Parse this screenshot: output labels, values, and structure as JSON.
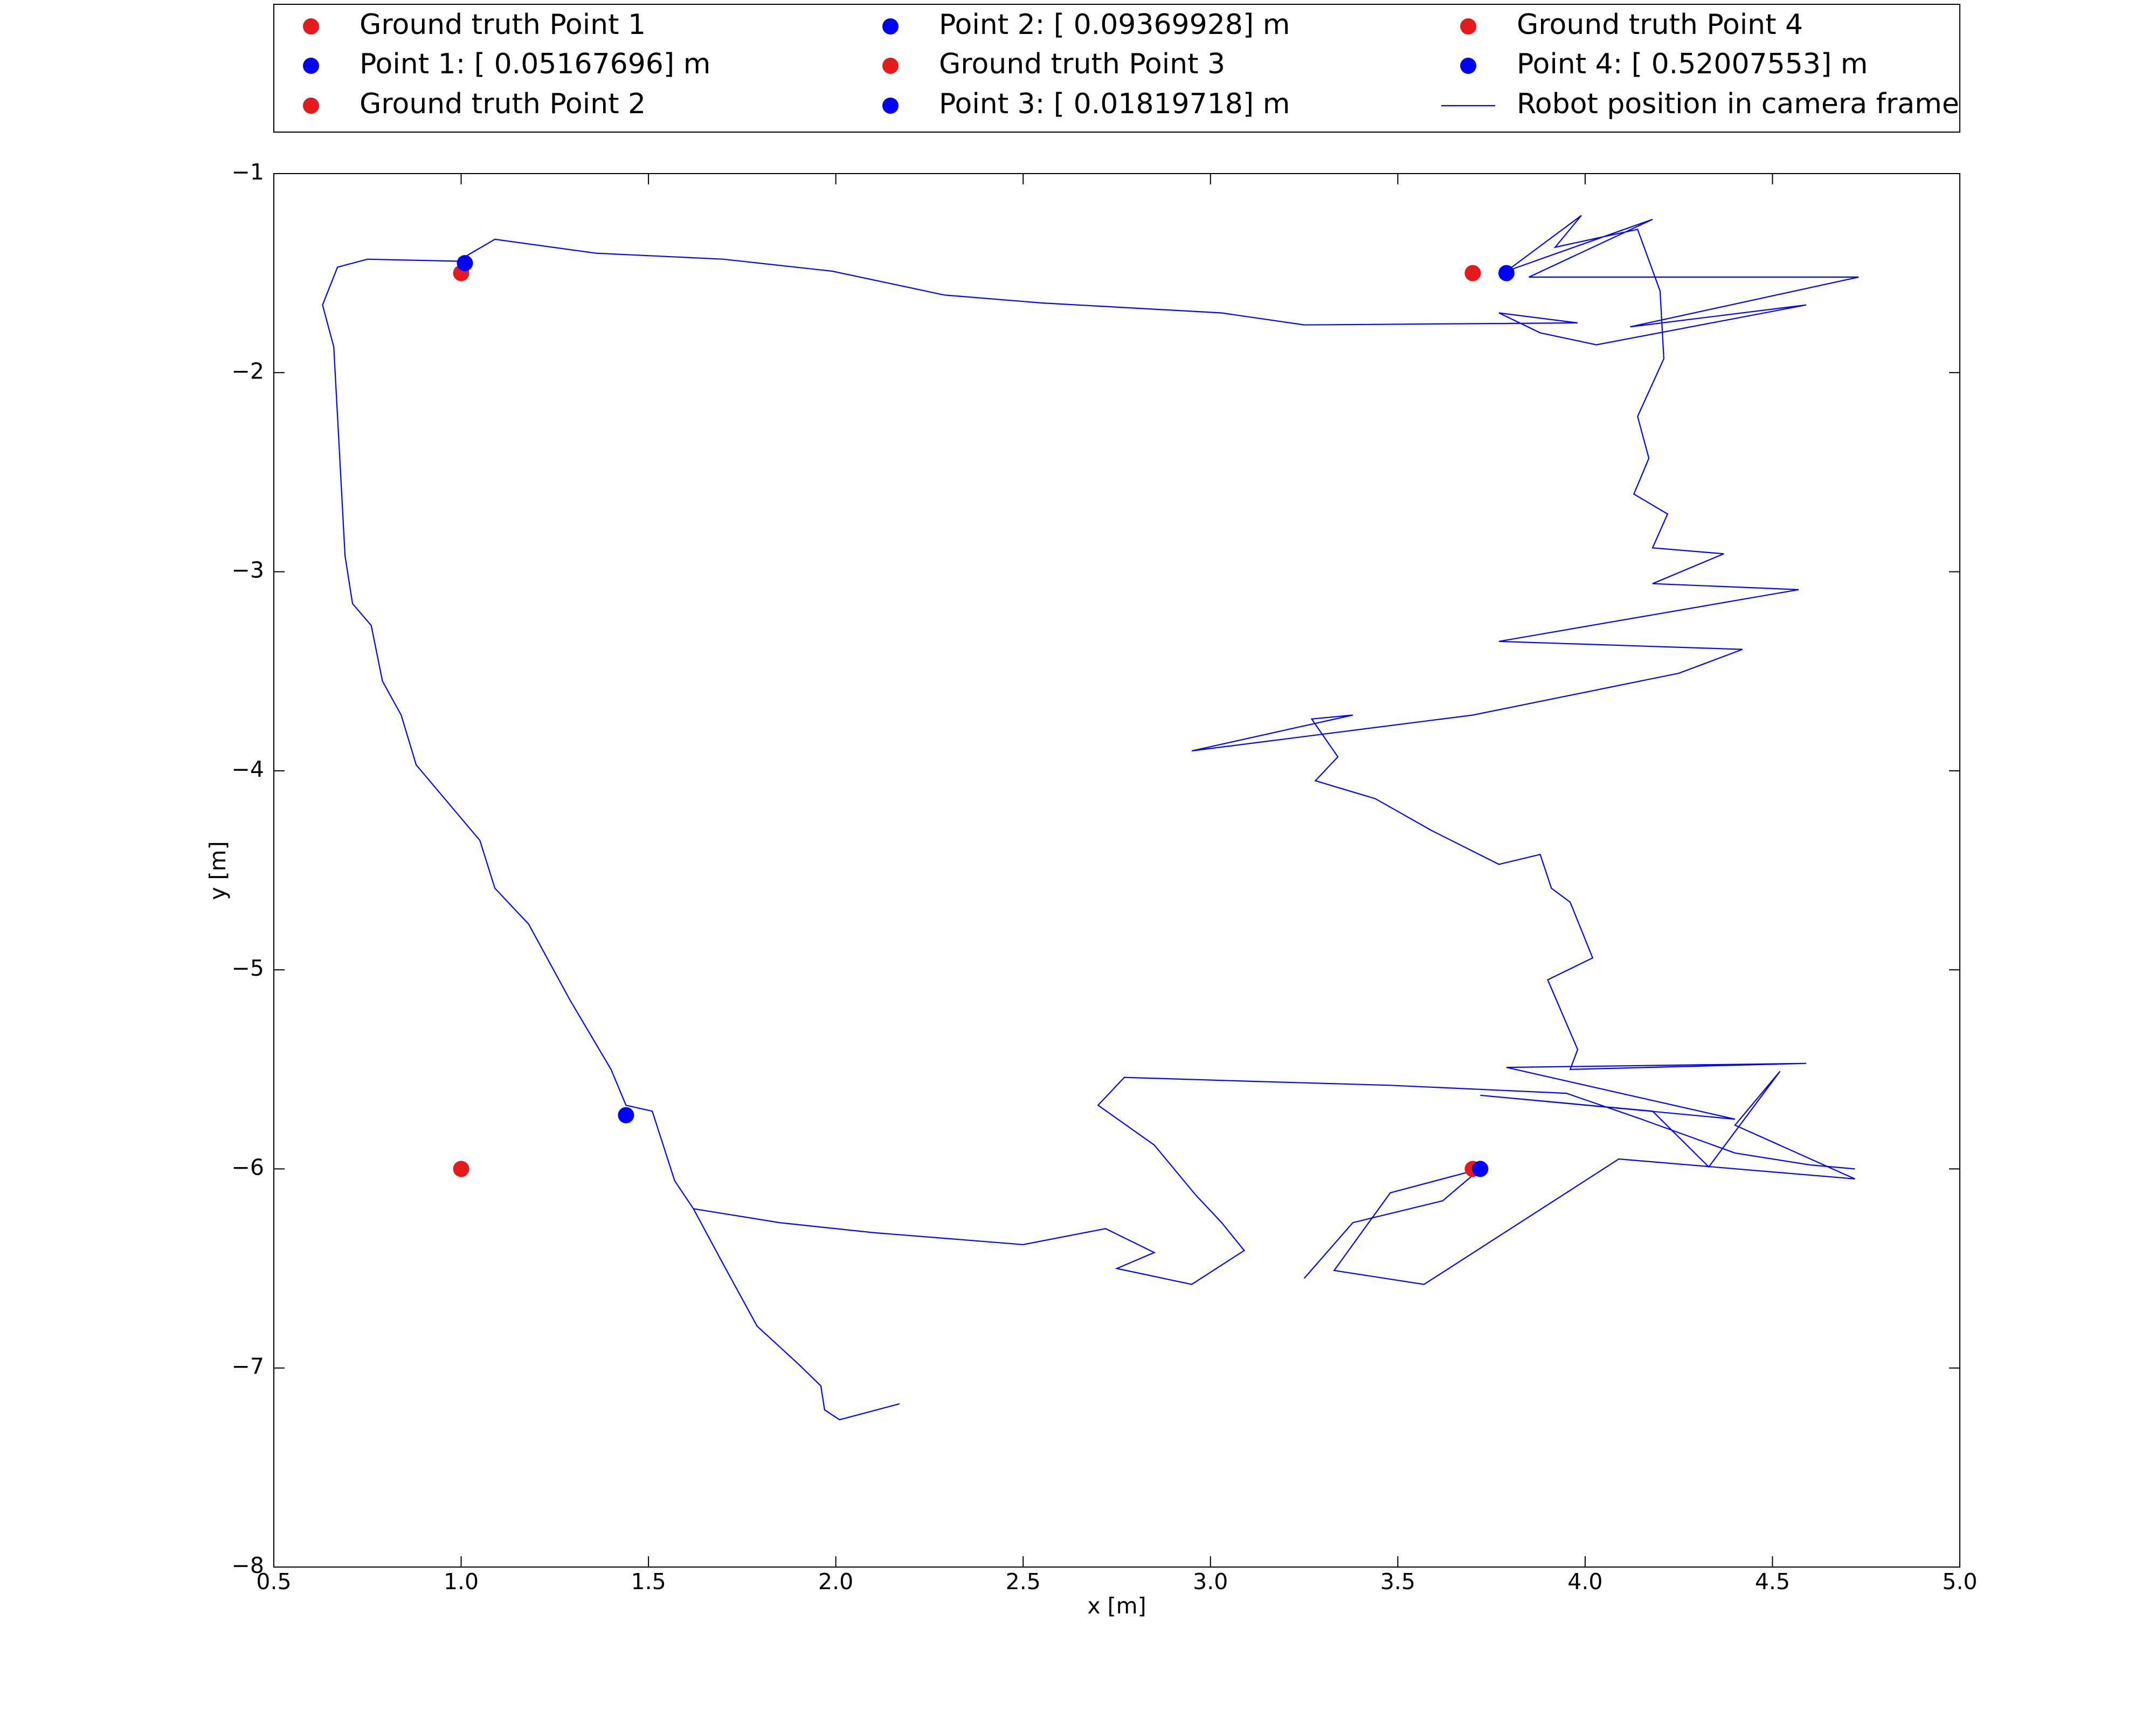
{
  "chart_data": {
    "type": "scatter",
    "xlabel": "x [m]",
    "ylabel": "y [m]",
    "xlim": [
      0.5,
      5.0
    ],
    "ylim": [
      -8,
      -1
    ],
    "xticks": [
      0.5,
      {
        "value": 1,
        "label": "1.0"
      },
      1.5,
      {
        "value": 2,
        "label": "2.0"
      },
      2.5,
      {
        "value": 3,
        "label": "3.0"
      },
      3.5,
      {
        "value": 4,
        "label": "4.0"
      },
      4.5,
      {
        "value": 5,
        "label": "5.0"
      }
    ],
    "yticks": [
      {
        "value": -8,
        "label": "−8"
      },
      {
        "value": -7,
        "label": "−7"
      },
      {
        "value": -6,
        "label": "−6"
      },
      {
        "value": -5,
        "label": "−5"
      },
      {
        "value": -4,
        "label": "−4"
      },
      {
        "value": -3,
        "label": "−3"
      },
      {
        "value": -2,
        "label": "−2"
      },
      {
        "value": -1,
        "label": "−1"
      }
    ],
    "grid": false,
    "legend": "top",
    "series": [
      {
        "name": "Ground truth Point 1",
        "type": "scatter",
        "color": "#e41a1c",
        "x": [
          1.0
        ],
        "values": [
          -1.5
        ]
      },
      {
        "name": "Point 1: [ 0.05167696] m",
        "type": "scatter",
        "color": "#0000ff",
        "x": [
          1.01
        ],
        "values": [
          -1.45
        ]
      },
      {
        "name": "Ground truth Point 2",
        "type": "scatter",
        "color": "#e41a1c",
        "x": [
          3.7
        ],
        "values": [
          -1.5
        ]
      },
      {
        "name": "Point 2: [ 0.09369928] m",
        "type": "scatter",
        "color": "#0000ff",
        "x": [
          3.79
        ],
        "values": [
          -1.5
        ]
      },
      {
        "name": "Ground truth Point 3",
        "type": "scatter",
        "color": "#e41a1c",
        "x": [
          3.7
        ],
        "values": [
          -6.0
        ]
      },
      {
        "name": "Point 3: [ 0.01819718] m",
        "type": "scatter",
        "color": "#0000ff",
        "x": [
          3.72
        ],
        "values": [
          -6.0
        ]
      },
      {
        "name": "Ground truth Point 4",
        "type": "scatter",
        "color": "#e41a1c",
        "x": [
          1.0
        ],
        "values": [
          -6.0
        ]
      },
      {
        "name": "Point 4: [ 0.52007553] m",
        "type": "scatter",
        "color": "#0000ff",
        "x": [
          1.44
        ],
        "values": [
          -5.73
        ]
      },
      {
        "name": "Robot position in camera frame",
        "type": "line",
        "color": "#0000ff",
        "x": [
          2.17,
          2.01,
          1.97,
          1.96,
          1.9,
          1.79,
          1.7,
          1.62,
          1.57,
          1.51,
          1.44,
          1.4,
          1.29,
          1.18,
          1.09,
          1.05,
          0.88,
          0.84,
          0.79,
          0.76,
          0.71,
          0.69,
          0.67,
          0.66,
          0.63,
          0.67,
          0.75,
          0.99,
          1.09,
          1.36,
          1.7,
          1.99,
          2.29,
          2.55,
          3.03,
          3.25,
          3.98,
          3.77,
          3.88,
          4.03,
          4.59,
          4.12,
          4.73,
          3.85,
          4.18,
          3.79,
          3.99,
          3.92,
          4.14,
          4.2,
          4.21,
          4.14,
          4.17,
          4.13,
          4.22,
          4.18,
          4.37,
          4.18,
          4.57,
          3.77,
          4.42,
          4.25,
          3.7,
          2.95,
          3.38,
          3.27,
          3.34,
          3.28,
          3.44,
          3.59,
          3.77,
          3.88,
          3.91,
          3.96,
          4.02,
          3.9,
          3.98,
          3.96,
          4.59,
          3.79,
          4.4,
          3.72,
          4.18,
          4.33,
          4.52,
          4.4,
          4.72,
          4.09,
          3.57,
          3.33,
          3.48,
          3.72,
          3.62,
          3.38,
          3.25,
          null,
          1.62,
          1.85,
          2.1,
          2.5,
          2.72,
          2.85,
          2.75,
          2.95,
          3.09,
          3.03,
          2.96,
          2.85,
          2.7,
          2.77,
          3.11,
          3.48,
          3.95,
          4.15,
          4.4,
          4.6,
          4.72
        ],
        "values": [
          -7.18,
          -7.26,
          -7.21,
          -7.09,
          -6.98,
          -6.79,
          -6.48,
          -6.2,
          -6.06,
          -5.71,
          -5.68,
          -5.5,
          -5.15,
          -4.77,
          -4.59,
          -4.35,
          -3.97,
          -3.72,
          -3.55,
          -3.27,
          -3.16,
          -2.92,
          -2.22,
          -1.87,
          -1.66,
          -1.47,
          -1.43,
          -1.44,
          -1.33,
          -1.4,
          -1.43,
          -1.49,
          -1.61,
          -1.65,
          -1.7,
          -1.76,
          -1.75,
          -1.7,
          -1.8,
          -1.86,
          -1.66,
          -1.77,
          -1.52,
          -1.52,
          -1.23,
          -1.49,
          -1.21,
          -1.37,
          -1.28,
          -1.59,
          -1.93,
          -2.22,
          -2.43,
          -2.61,
          -2.71,
          -2.88,
          -2.91,
          -3.06,
          -3.09,
          -3.35,
          -3.39,
          -3.51,
          -3.72,
          -3.9,
          -3.72,
          -3.74,
          -3.93,
          -4.05,
          -4.14,
          -4.3,
          -4.47,
          -4.42,
          -4.59,
          -4.66,
          -4.94,
          -5.05,
          -5.4,
          -5.5,
          -5.47,
          -5.49,
          -5.75,
          -5.63,
          -5.71,
          -5.99,
          -5.51,
          -5.78,
          -6.05,
          -5.95,
          -6.58,
          -6.51,
          -6.12,
          -6.0,
          -6.16,
          -6.27,
          -6.55,
          null,
          -6.2,
          -6.27,
          -6.32,
          -6.38,
          -6.3,
          -6.42,
          -6.5,
          -6.58,
          -6.41,
          -6.27,
          -6.13,
          -5.88,
          -5.68,
          -5.54,
          -5.56,
          -5.58,
          -5.62,
          -5.75,
          -5.92,
          -5.98,
          -6.0
        ]
      }
    ]
  }
}
